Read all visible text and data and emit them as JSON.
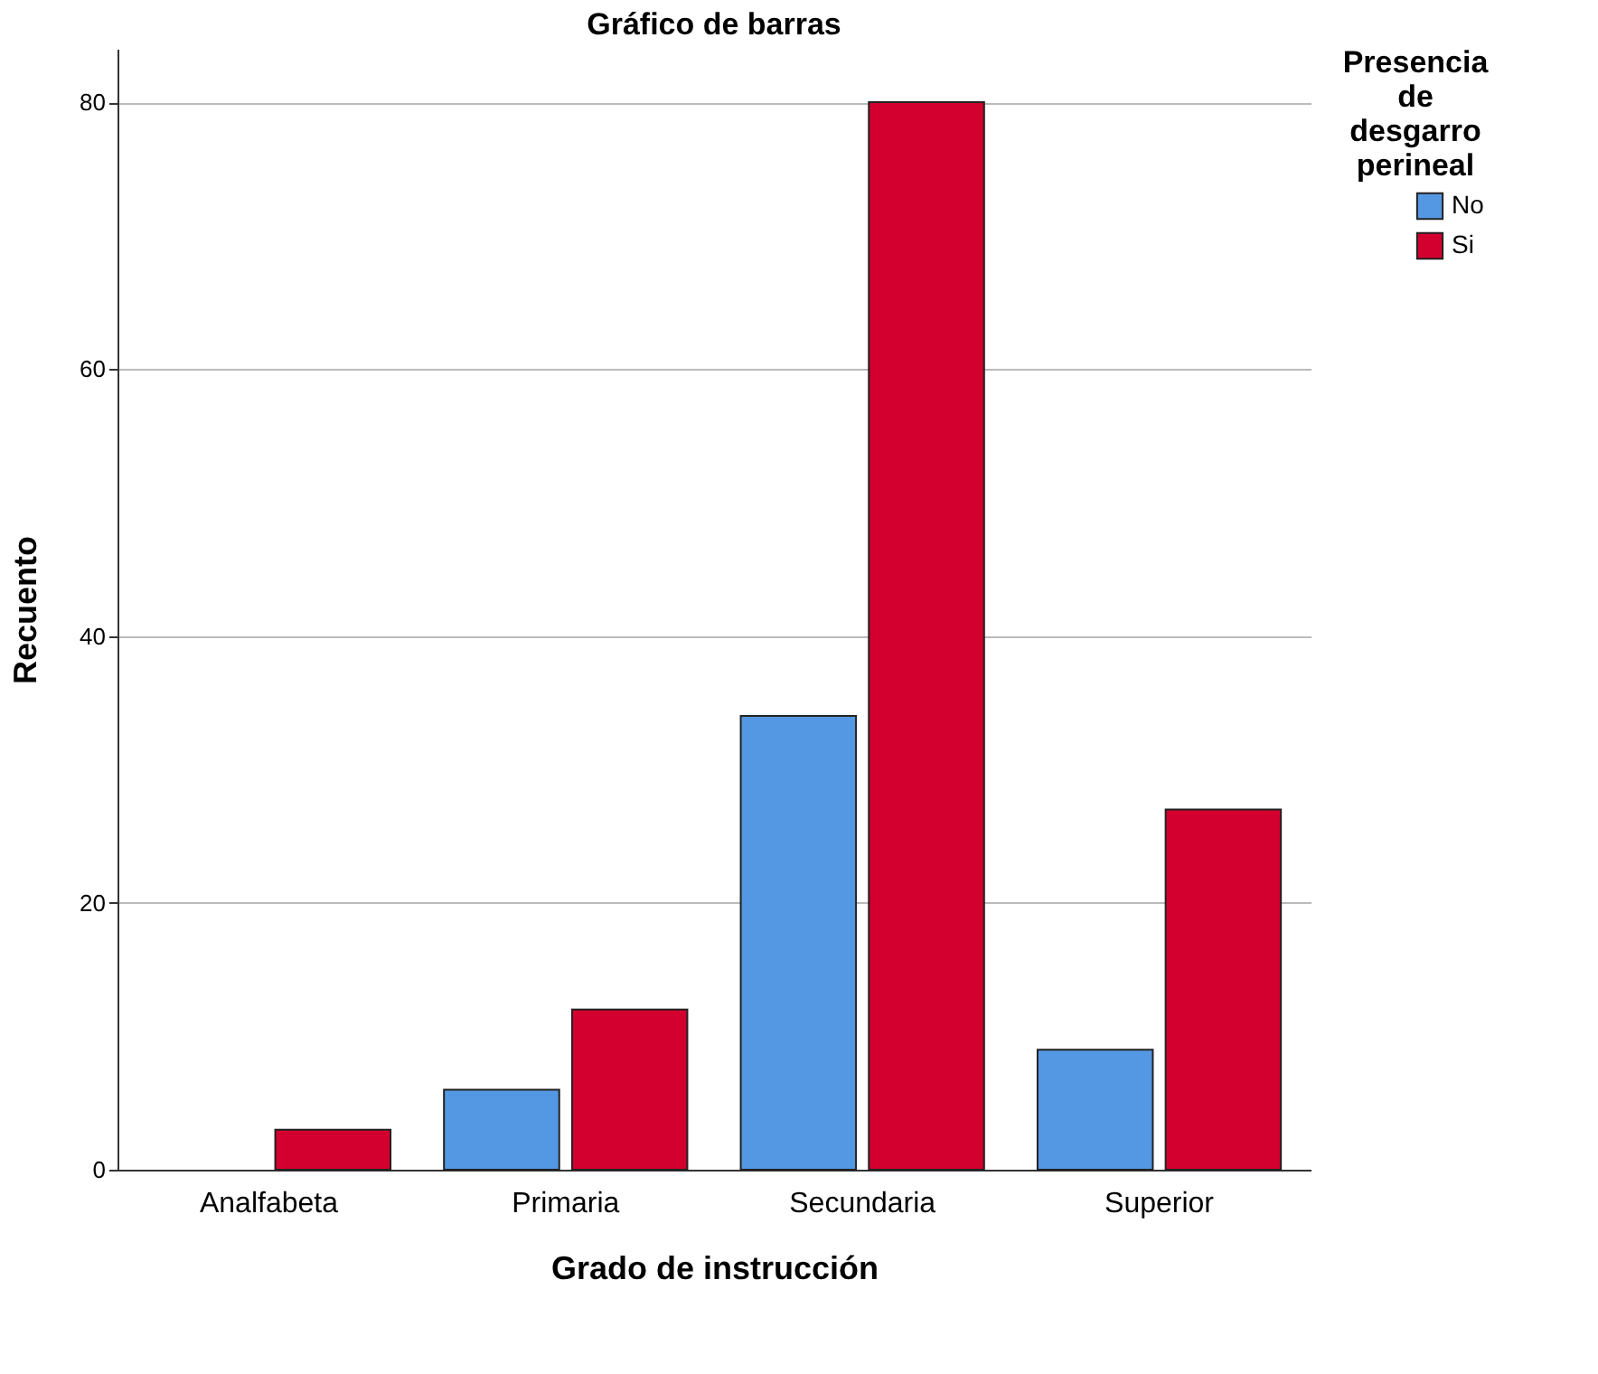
{
  "chart_data": {
    "type": "bar",
    "title": "Gráfico de barras",
    "xlabel": "Grado de instrucción",
    "ylabel": "Recuento",
    "legend_title": "Presencia de desgarro perineal",
    "categories": [
      "Analfabeta",
      "Primaria",
      "Secundaria",
      "Superior"
    ],
    "series": [
      {
        "name": "No",
        "color": "#5497e2",
        "values": [
          0,
          6,
          34,
          9
        ]
      },
      {
        "name": "Si",
        "color": "#d3002f",
        "values": [
          3,
          12,
          80,
          27
        ]
      }
    ],
    "ylim": [
      0,
      84
    ],
    "yticks": [
      0,
      20,
      40,
      60,
      80
    ],
    "grid": "y",
    "legend": "top right"
  }
}
